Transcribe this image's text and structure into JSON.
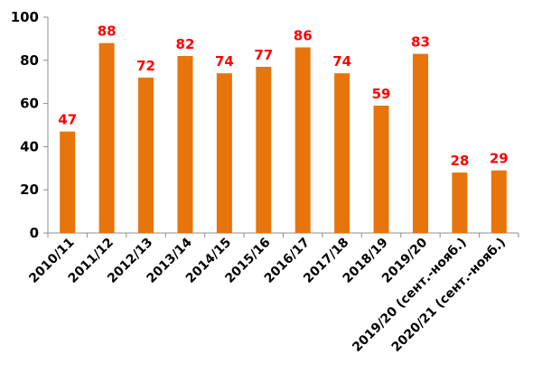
{
  "chart_data": {
    "type": "bar",
    "title": "",
    "xlabel": "",
    "ylabel": "",
    "ylim": [
      0,
      100
    ],
    "yticks": [
      0,
      20,
      40,
      60,
      80,
      100
    ],
    "grid": false,
    "categories": [
      "2010/11",
      "2011/12",
      "2012/13",
      "2013/14",
      "2014/15",
      "2015/16",
      "2016/17",
      "2017/18",
      "2018/19",
      "2019/20",
      "2019/20 (сент.-нояб.)",
      "2020/21 (сент.-нояб.)"
    ],
    "values": [
      47,
      88,
      72,
      82,
      74,
      77,
      86,
      74,
      59,
      83,
      28,
      29
    ],
    "data_labels": [
      "47",
      "88",
      "72",
      "82",
      "74",
      "77",
      "86",
      "74",
      "59",
      "83",
      "28",
      "29"
    ],
    "colors": {
      "bar": "#E8740C",
      "data_label": "#FF0000",
      "axis": "#8C8C8C"
    }
  }
}
